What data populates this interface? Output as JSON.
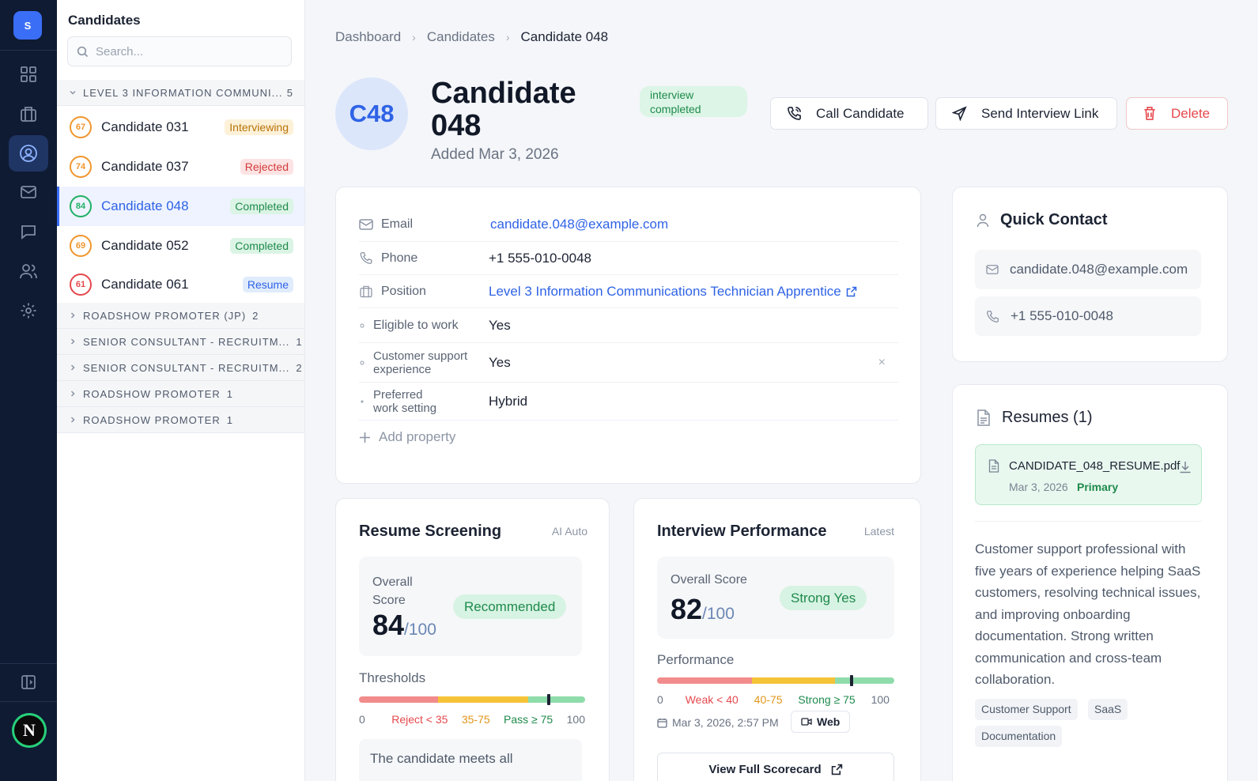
{
  "rail": {
    "logo": "S",
    "user_initial": "N",
    "items": [
      "grid-icon",
      "briefcase-icon",
      "user-circle-icon",
      "mail-icon",
      "chat-icon",
      "users-icon",
      "settings-icon"
    ]
  },
  "sidebar": {
    "title": "Candidates",
    "search_placeholder": "Search...",
    "open_group": {
      "label": "LEVEL 3 INFORMATION COMMUNI...",
      "count": "5"
    },
    "candidates": [
      {
        "score": "67",
        "name": "Candidate 031",
        "status": "Interviewing",
        "ring": "#f0962e",
        "badge_bg": "#fdf1d8",
        "badge_fg": "#b87308"
      },
      {
        "score": "74",
        "name": "Candidate 037",
        "status": "Rejected",
        "ring": "#f0962e",
        "badge_bg": "#fde3e3",
        "badge_fg": "#d23b3b"
      },
      {
        "score": "84",
        "name": "Candidate 048",
        "status": "Completed",
        "ring": "#22b065",
        "badge_bg": "#dbf4e5",
        "badge_fg": "#1f8a4c"
      },
      {
        "score": "69",
        "name": "Candidate 052",
        "status": "Completed",
        "ring": "#f0962e",
        "badge_bg": "#dbf4e5",
        "badge_fg": "#1f8a4c"
      },
      {
        "score": "61",
        "name": "Candidate 061",
        "status": "Resume",
        "ring": "#e5484d",
        "badge_bg": "#e0ecfc",
        "badge_fg": "#2f63e6"
      }
    ],
    "groups": [
      {
        "label": "ROADSHOW PROMOTER (JP)",
        "count": "2"
      },
      {
        "label": "SENIOR CONSULTANT - RECRUITM...",
        "count": "1"
      },
      {
        "label": "SENIOR CONSULTANT - RECRUITM...",
        "count": "2"
      },
      {
        "label": "ROADSHOW PROMOTER",
        "count": "1"
      },
      {
        "label": "ROADSHOW PROMOTER",
        "count": "1"
      }
    ]
  },
  "breadcrumb": [
    "Dashboard",
    "Candidates",
    "Candidate 048"
  ],
  "candidate": {
    "initials": "C48",
    "name_line1": "Candidate",
    "name_line2": "048",
    "added": "Added Mar 3, 2026",
    "status_line1": "interview",
    "status_line2": "completed"
  },
  "actions": {
    "call": "Call Candidate",
    "send": "Send Interview Link",
    "delete": "Delete"
  },
  "properties": [
    {
      "key": "Email",
      "value": "candidate.048@example.com"
    },
    {
      "key": "Phone",
      "value": "+1 555-010-0048"
    },
    {
      "key": "Position",
      "value": "Level 3 Information Communications Technician Apprentice"
    },
    {
      "key": "Eligible to work",
      "value": "Yes"
    },
    {
      "key_line1": "Customer support",
      "key_line2": "experience",
      "value": "Yes"
    },
    {
      "key_line1": "Preferred",
      "key_line2": "work setting",
      "value": "Hybrid"
    }
  ],
  "add_property": "Add property",
  "quick_contact": {
    "title": "Quick Contact",
    "email": "candidate.048@example.com",
    "phone": "+1 555-010-0048"
  },
  "resumes": {
    "title": "Resumes (1)",
    "file": {
      "name": "CANDIDATE_048_RESUME.pdf",
      "date": "Mar 3, 2026",
      "tag": "Primary"
    },
    "summary": "Customer support professional with five years of experience helping SaaS customers, resolving technical issues, and improving onboarding documentation. Strong written communication and cross-team collaboration.",
    "tags": [
      "Customer Support",
      "SaaS",
      "Documentation"
    ]
  },
  "screening": {
    "title": "Resume Screening",
    "tag": "AI Auto",
    "label_line1": "Overall",
    "label_line2": "Score",
    "score": "84",
    "out_of": "/100",
    "pill": "Recommended",
    "thresholds_label": "Thresholds",
    "ticks": [
      "0",
      "Reject < 35",
      "35-75",
      "Pass ≥ 75",
      "100"
    ],
    "marker_value": 84,
    "note": "The candidate meets all"
  },
  "interview": {
    "title": "Interview Performance",
    "tag": "Latest",
    "label": "Overall Score",
    "score": "82",
    "out_of": "/100",
    "pill": "Strong Yes",
    "perf_label": "Performance",
    "ticks": [
      "0",
      "Weak < 40",
      "40-75",
      "Strong ≥ 75",
      "100"
    ],
    "marker_value": 82,
    "datetime": "Mar 3, 2026, 2:57 PM",
    "channel": "Web",
    "scorecard": "View Full Scorecard"
  },
  "colors": {
    "accent": "#3b6ef6",
    "success": "#1f8a4c",
    "danger": "#e5484d",
    "warning": "#f0b429"
  }
}
